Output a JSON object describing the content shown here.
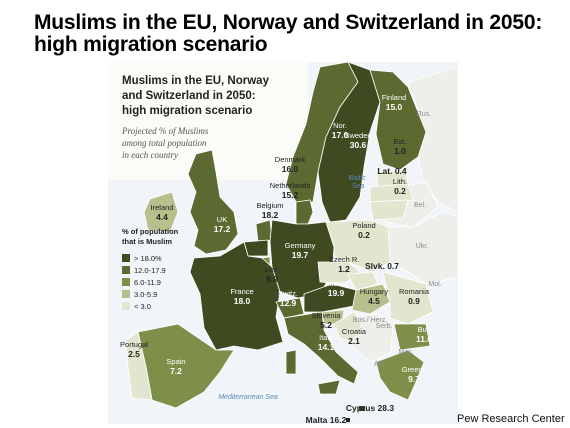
{
  "page": {
    "title": "Muslims in the EU, Norway and Switzerland in 2050: high migration scenario",
    "credit": "Pew Research Center"
  },
  "map": {
    "title_lines": [
      "Muslims in the EU, Norway",
      "and Switzerland in 2050:",
      "high migration scenario"
    ],
    "subtitle_lines": [
      "Projected % of Muslims",
      "among total population",
      "in each country"
    ],
    "legend": {
      "title_lines": [
        "% of population",
        "that is Muslim"
      ],
      "items": [
        {
          "label": "> 18.0%",
          "color": "#3f4a20"
        },
        {
          "label": "12.0-17.9",
          "color": "#5a6a30"
        },
        {
          "label": "6.0-11.9",
          "color": "#7e8f49"
        },
        {
          "label": "3.0-5.9",
          "color": "#b6c08d"
        },
        {
          "label": "< 3.0",
          "color": "#e2e6cf"
        }
      ]
    },
    "countries": [
      {
        "name": "Nor.",
        "value": "17.0"
      },
      {
        "name": "Sweden",
        "value": "30.6"
      },
      {
        "name": "Finland",
        "value": "15.0"
      },
      {
        "name": "Denmark",
        "value": "16.0"
      },
      {
        "name": "Est.",
        "value": "1.0"
      },
      {
        "name": "Lat.",
        "value": "0.4"
      },
      {
        "name": "Lith.",
        "value": "0.2"
      },
      {
        "name": "Ireland",
        "value": "4.4"
      },
      {
        "name": "UK",
        "value": "17.2"
      },
      {
        "name": "Netherlands",
        "value": "15.2"
      },
      {
        "name": "Belgium",
        "value": "18.2"
      },
      {
        "name": "Germany",
        "value": "19.7"
      },
      {
        "name": "Poland",
        "value": "0.2"
      },
      {
        "name": "Czech R.",
        "value": "1.2"
      },
      {
        "name": "Slvk.",
        "value": "0.7"
      },
      {
        "name": "Lux.",
        "value": "9.9"
      },
      {
        "name": "France",
        "value": "18.0"
      },
      {
        "name": "Switz.",
        "value": "12.9"
      },
      {
        "name": "Austria",
        "value": "19.9"
      },
      {
        "name": "Hungary",
        "value": "4.5"
      },
      {
        "name": "Romania",
        "value": "0.9"
      },
      {
        "name": "Slovenia",
        "value": "5.2"
      },
      {
        "name": "Croatia",
        "value": "2.1"
      },
      {
        "name": "Italy",
        "value": "14.1"
      },
      {
        "name": "Bul.",
        "value": "11.6"
      },
      {
        "name": "Greece",
        "value": "9.7"
      },
      {
        "name": "Portugal",
        "value": "2.5"
      },
      {
        "name": "Spain",
        "value": "7.2"
      },
      {
        "name": "Cyprus",
        "value": "28.3"
      },
      {
        "name": "Malta",
        "value": "16.2"
      }
    ],
    "non_data_labels": [
      "Rus.",
      "Bel.",
      "Ukr.",
      "Mol.",
      "Bos./ Herz.",
      "Serb.",
      "Mac.",
      "Alb."
    ],
    "sea_labels": [
      "Baltic Sea",
      "Mediterranean Sea"
    ]
  }
}
